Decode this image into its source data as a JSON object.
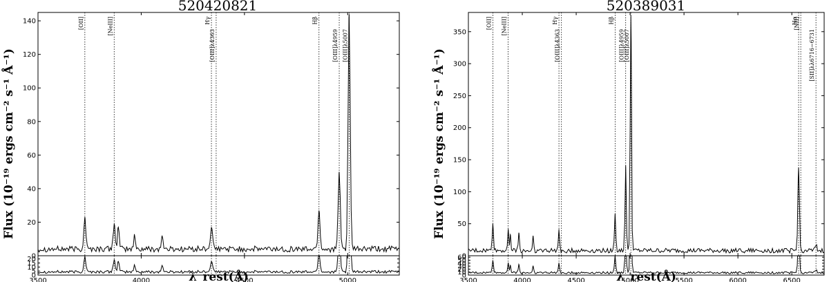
{
  "chart_data": [
    {
      "type": "line",
      "title": "520420821",
      "xlabel": "λ_rest(Å)",
      "ylabel": "Flux (10⁻¹⁹ ergs cm⁻² s⁻¹ Å⁻¹)",
      "xlim": [
        3500,
        5250
      ],
      "xticks": [
        "3500",
        "4000",
        "4500",
        "5000"
      ],
      "top_ylim": [
        0,
        145
      ],
      "top_yticks": [
        "0",
        "20",
        "40",
        "60",
        "80",
        "100",
        "120",
        "140"
      ],
      "bottom_ylim": [
        0,
        24
      ],
      "bottom_yticks": [
        "0",
        "5",
        "10",
        "15",
        "20"
      ],
      "continuum": 4,
      "emission_lines": [
        {
          "label": "[OII]",
          "wavelength": 3727,
          "peak": 19,
          "width": 5,
          "label_pos": "upper"
        },
        {
          "label": "[NeIII]",
          "wavelength": 3869,
          "peak": 15,
          "width": 5,
          "label_pos": "upper"
        },
        {
          "label": "Hγ",
          "wavelength": 4340,
          "peak": 13,
          "width": 5,
          "label_pos": "upper"
        },
        {
          "label": "[OIII]λ4363",
          "wavelength": 4363,
          "peak": 0,
          "width": 5,
          "label_pos": "lower"
        },
        {
          "label": "Hβ",
          "wavelength": 4861,
          "peak": 23,
          "width": 5,
          "label_pos": "upper"
        },
        {
          "label": "[OIII]λ4959",
          "wavelength": 4959,
          "peak": 46,
          "width": 5,
          "label_pos": "lower"
        },
        {
          "label": "[OIII]λ5007",
          "wavelength": 5007,
          "peak": 140,
          "width": 5,
          "label_pos": "lower"
        }
      ],
      "extra_features": [
        {
          "wavelength": 3889,
          "peak": 13,
          "width": 4
        },
        {
          "wavelength": 3968,
          "peak": 8,
          "width": 4
        },
        {
          "wavelength": 4101,
          "peak": 8,
          "width": 4
        }
      ]
    },
    {
      "type": "line",
      "title": "520389031",
      "xlabel": "λ_rest(Å)",
      "ylabel": "Flux (10⁻¹⁹ ergs cm⁻² s⁻¹ Å⁻¹)",
      "xlim": [
        3500,
        6800
      ],
      "xticks": [
        "3500",
        "4000",
        "4500",
        "5000",
        "5500",
        "6000",
        "6500"
      ],
      "top_ylim": [
        0,
        380
      ],
      "top_yticks": [
        "0",
        "50",
        "100",
        "150",
        "200",
        "250",
        "300",
        "350"
      ],
      "bottom_ylim": [
        0,
        65
      ],
      "bottom_yticks": [
        "0",
        "10",
        "20",
        "30",
        "40",
        "50",
        "60"
      ],
      "continuum": 8,
      "emission_lines": [
        {
          "label": "[OII]",
          "wavelength": 3727,
          "peak": 42,
          "width": 6,
          "label_pos": "upper"
        },
        {
          "label": "[NeIII]",
          "wavelength": 3869,
          "peak": 33,
          "width": 6,
          "label_pos": "upper"
        },
        {
          "label": "Hγ",
          "wavelength": 4340,
          "peak": 32,
          "width": 6,
          "label_pos": "upper"
        },
        {
          "label": "[OIII]λ4363",
          "wavelength": 4363,
          "peak": 0,
          "width": 6,
          "label_pos": "lower"
        },
        {
          "label": "Hβ",
          "wavelength": 4861,
          "peak": 58,
          "width": 6,
          "label_pos": "upper"
        },
        {
          "label": "[OIII]λ4959",
          "wavelength": 4959,
          "peak": 133,
          "width": 6,
          "label_pos": "lower"
        },
        {
          "label": "[OIII]λ5007",
          "wavelength": 5007,
          "peak": 368,
          "width": 6,
          "label_pos": "lower"
        },
        {
          "label": "Hα",
          "wavelength": 6563,
          "peak": 130,
          "width": 7,
          "label_pos": "upper"
        },
        {
          "label": "[NII]",
          "wavelength": 6583,
          "peak": 0,
          "width": 6,
          "label_pos": "upper"
        },
        {
          "label": "[SII]λλ6716−6731",
          "wavelength": 6724,
          "peak": 8,
          "width": 8,
          "label_pos": "lower"
        }
      ],
      "extra_features": [
        {
          "wavelength": 3889,
          "peak": 25,
          "width": 5
        },
        {
          "wavelength": 3968,
          "peak": 28,
          "width": 5
        },
        {
          "wavelength": 4101,
          "peak": 22,
          "width": 5
        }
      ]
    }
  ]
}
